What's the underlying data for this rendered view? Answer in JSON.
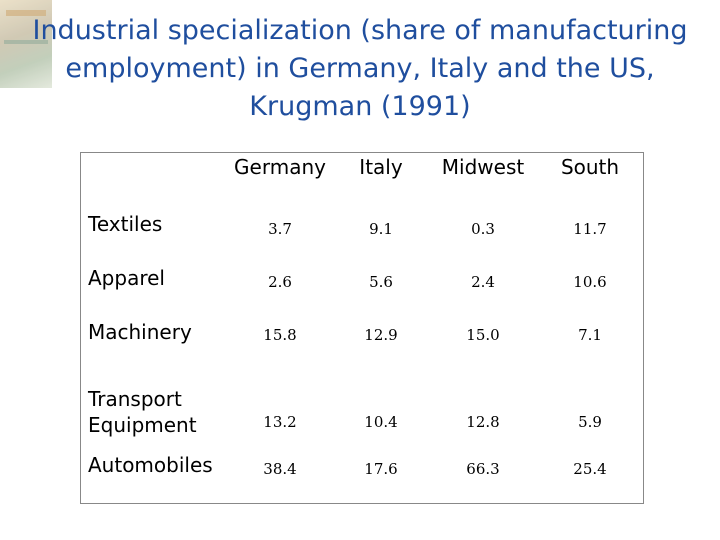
{
  "title": {
    "line1": "Industrial specialization (share of manufacturing",
    "line2": "employment) in Germany, Italy and the US,",
    "line3": "Krugman (1991)"
  },
  "table": {
    "columns": [
      "Germany",
      "Italy",
      "Midwest",
      "South"
    ],
    "rows": [
      {
        "label": "Textiles",
        "label2": "",
        "values": [
          "3.7",
          "9.1",
          "0.3",
          "11.7"
        ]
      },
      {
        "label": "Apparel",
        "label2": "",
        "values": [
          "2.6",
          "5.6",
          "2.4",
          "10.6"
        ]
      },
      {
        "label": "Machinery",
        "label2": "",
        "values": [
          "15.8",
          "12.9",
          "15.0",
          "7.1"
        ]
      },
      {
        "label": "Transport",
        "label2": "Equipment",
        "values": [
          "13.2",
          "10.4",
          "12.8",
          "5.9"
        ]
      },
      {
        "label": "Automobiles",
        "label2": "",
        "values": [
          "38.4",
          "17.6",
          "66.3",
          "25.4"
        ]
      }
    ]
  },
  "colors": {
    "title": "#1f4e9e",
    "text": "#000000",
    "border": "#888888"
  }
}
